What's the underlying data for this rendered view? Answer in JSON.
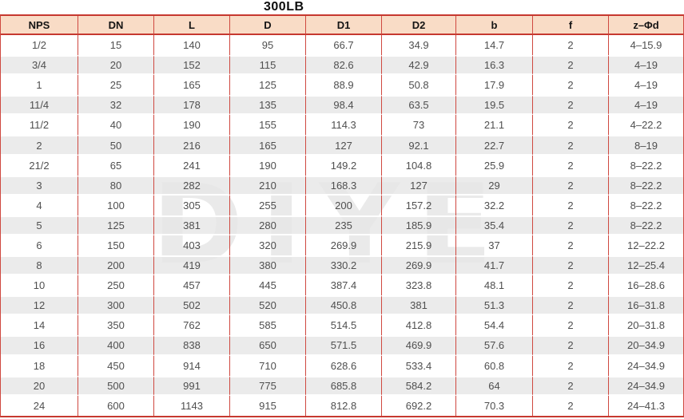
{
  "title": "300LB",
  "watermark": "DIYE",
  "colors": {
    "header_bg": "#f9dcc6",
    "stripe_gray": "#ebebeb",
    "grid_red": "#cf4840",
    "thick_red": "#c6382f",
    "header_text": "#141414",
    "cell_text": "#4f4f4f",
    "watermark_gray": "#e7e7e7"
  },
  "table": {
    "headers": [
      "NPS",
      "DN",
      "L",
      "D",
      "D1",
      "D2",
      "b",
      "f",
      "z–Φd"
    ],
    "rows": [
      [
        "1/2",
        "15",
        "140",
        "95",
        "66.7",
        "34.9",
        "14.7",
        "2",
        "4–15.9"
      ],
      [
        "3/4",
        "20",
        "152",
        "115",
        "82.6",
        "42.9",
        "16.3",
        "2",
        "4–19"
      ],
      [
        "1",
        "25",
        "165",
        "125",
        "88.9",
        "50.8",
        "17.9",
        "2",
        "4–19"
      ],
      [
        "11/4",
        "32",
        "178",
        "135",
        "98.4",
        "63.5",
        "19.5",
        "2",
        "4–19"
      ],
      [
        "11/2",
        "40",
        "190",
        "155",
        "114.3",
        "73",
        "21.1",
        "2",
        "4–22.2"
      ],
      [
        "2",
        "50",
        "216",
        "165",
        "127",
        "92.1",
        "22.7",
        "2",
        "8–19"
      ],
      [
        "21/2",
        "65",
        "241",
        "190",
        "149.2",
        "104.8",
        "25.9",
        "2",
        "8–22.2"
      ],
      [
        "3",
        "80",
        "282",
        "210",
        "168.3",
        "127",
        "29",
        "2",
        "8–22.2"
      ],
      [
        "4",
        "100",
        "305",
        "255",
        "200",
        "157.2",
        "32.2",
        "2",
        "8–22.2"
      ],
      [
        "5",
        "125",
        "381",
        "280",
        "235",
        "185.9",
        "35.4",
        "2",
        "8–22.2"
      ],
      [
        "6",
        "150",
        "403",
        "320",
        "269.9",
        "215.9",
        "37",
        "2",
        "12–22.2"
      ],
      [
        "8",
        "200",
        "419",
        "380",
        "330.2",
        "269.9",
        "41.7",
        "2",
        "12–25.4"
      ],
      [
        "10",
        "250",
        "457",
        "445",
        "387.4",
        "323.8",
        "48.1",
        "2",
        "16–28.6"
      ],
      [
        "12",
        "300",
        "502",
        "520",
        "450.8",
        "381",
        "51.3",
        "2",
        "16–31.8"
      ],
      [
        "14",
        "350",
        "762",
        "585",
        "514.5",
        "412.8",
        "54.4",
        "2",
        "20–31.8"
      ],
      [
        "16",
        "400",
        "838",
        "650",
        "571.5",
        "469.9",
        "57.6",
        "2",
        "20–34.9"
      ],
      [
        "18",
        "450",
        "914",
        "710",
        "628.6",
        "533.4",
        "60.8",
        "2",
        "24–34.9"
      ],
      [
        "20",
        "500",
        "991",
        "775",
        "685.8",
        "584.2",
        "64",
        "2",
        "24–34.9"
      ],
      [
        "24",
        "600",
        "1143",
        "915",
        "812.8",
        "692.2",
        "70.3",
        "2",
        "24–41.3"
      ]
    ]
  }
}
